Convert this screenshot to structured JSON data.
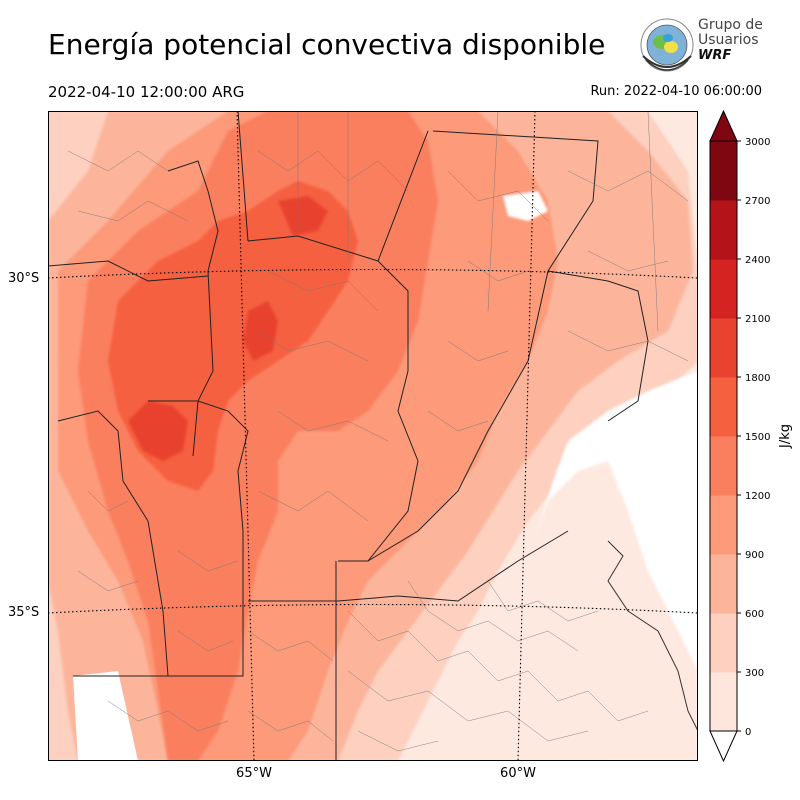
{
  "header": {
    "title": "Energía potencial convectiva disponible",
    "valid_time": "2022-04-10 12:00:00 ARG",
    "run_time": "Run: 2022-04-10 06:00:00"
  },
  "logo": {
    "line1": "Grupo de",
    "line2": "Usuarios",
    "line3": "WRF"
  },
  "map": {
    "variable": "CAPE",
    "lat_labels": [
      "30°S",
      "35°S"
    ],
    "lon_labels": [
      "65°W",
      "60°W"
    ]
  },
  "colorbar": {
    "unit_label": "J/kg",
    "ticks": [
      "0",
      "300",
      "600",
      "900",
      "1200",
      "1500",
      "1800",
      "2100",
      "2400",
      "2700",
      "3000"
    ],
    "colors": [
      "#fee6dc",
      "#fdd0bf",
      "#fcb59b",
      "#fc9a7a",
      "#fa7f5e",
      "#f5613f",
      "#e8432e",
      "#d42321",
      "#b41419",
      "#7f0712"
    ],
    "extend": "both"
  }
}
